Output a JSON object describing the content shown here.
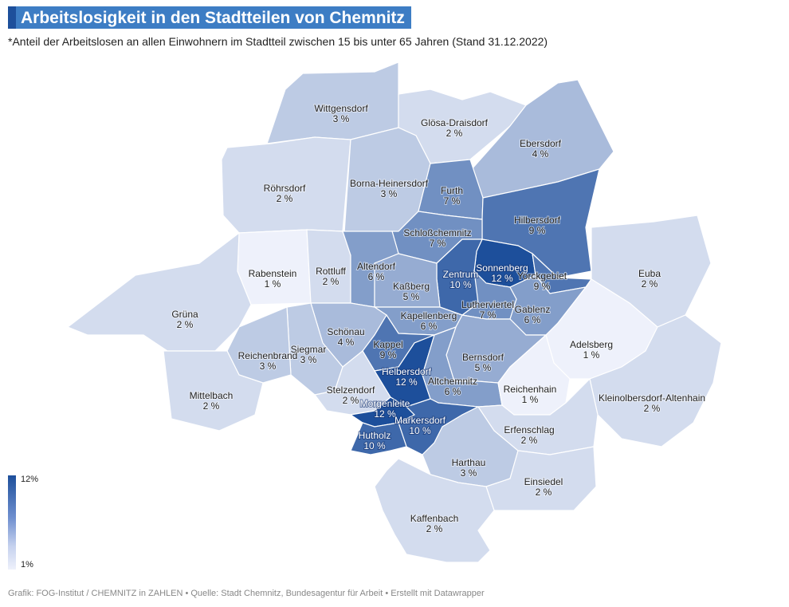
{
  "title": "Arbeitslosigkeit in den Stadtteilen von Chemnitz",
  "subtitle": "*Anteil der Arbeitslosen an allen Einwohnern im Stadtteil zwischen 15 bis unter 65 Jahren (Stand 31.12.2022)",
  "legend": {
    "max_label": "12%",
    "min_label": "1%",
    "color_max": "#1d4f9b",
    "color_min": "#eef1fb"
  },
  "footer": "Grafik: FOG-Institut / CHEMNITZ in ZAHLEN • Quelle: Stadt Chemnitz, Bundesagentur für Arbeit • Erstellt mit Datawrapper",
  "districts": [
    {
      "name": "Wittgensdorf",
      "value_label": "3 %",
      "value": 3
    },
    {
      "name": "Glösa-Draisdorf",
      "value_label": "2 %",
      "value": 2
    },
    {
      "name": "Ebersdorf",
      "value_label": "4 %",
      "value": 4
    },
    {
      "name": "Röhrsdorf",
      "value_label": "2 %",
      "value": 2
    },
    {
      "name": "Borna-Heinersdorf",
      "value_label": "3 %",
      "value": 3
    },
    {
      "name": "Furth",
      "value_label": "7 %",
      "value": 7
    },
    {
      "name": "Hilbersdorf",
      "value_label": "9 %",
      "value": 9
    },
    {
      "name": "Schloßchemnitz",
      "value_label": "7 %",
      "value": 7
    },
    {
      "name": "Rabenstein",
      "value_label": "1 %",
      "value": 1
    },
    {
      "name": "Rottluff",
      "value_label": "2 %",
      "value": 2
    },
    {
      "name": "Altendorf",
      "value_label": "6 %",
      "value": 6
    },
    {
      "name": "Sonnenberg",
      "value_label": "12 %",
      "value": 12
    },
    {
      "name": "Euba",
      "value_label": "2 %",
      "value": 2
    },
    {
      "name": "Zentrum",
      "value_label": "10 %",
      "value": 10
    },
    {
      "name": "Yorckgebiet",
      "value_label": "9 %",
      "value": 9
    },
    {
      "name": "Kaßberg",
      "value_label": "5 %",
      "value": 5
    },
    {
      "name": "Lutherviertel",
      "value_label": "7 %",
      "value": 7
    },
    {
      "name": "Gablenz",
      "value_label": "6 %",
      "value": 6
    },
    {
      "name": "Grüna",
      "value_label": "2 %",
      "value": 2
    },
    {
      "name": "Kapellenberg",
      "value_label": "6 %",
      "value": 6
    },
    {
      "name": "Schönau",
      "value_label": "4 %",
      "value": 4
    },
    {
      "name": "Adelsberg",
      "value_label": "1 %",
      "value": 1
    },
    {
      "name": "Kappel",
      "value_label": "9 %",
      "value": 9
    },
    {
      "name": "Siegmar",
      "value_label": "3 %",
      "value": 3
    },
    {
      "name": "Reichenbrand",
      "value_label": "3 %",
      "value": 3
    },
    {
      "name": "Bernsdorf",
      "value_label": "5 %",
      "value": 5
    },
    {
      "name": "Helbersdorf",
      "value_label": "12 %",
      "value": 12
    },
    {
      "name": "Altchemnitz",
      "value_label": "6 %",
      "value": 6
    },
    {
      "name": "Reichenhain",
      "value_label": "1 %",
      "value": 1
    },
    {
      "name": "Mittelbach",
      "value_label": "2 %",
      "value": 2
    },
    {
      "name": "Stelzendorf",
      "value_label": "2 %",
      "value": 2
    },
    {
      "name": "Morgenleite",
      "value_label": "12 %",
      "value": 12
    },
    {
      "name": "Kleinolbersdorf-Altenhain",
      "value_label": "2 %",
      "value": 2
    },
    {
      "name": "Markersdorf",
      "value_label": "10 %",
      "value": 10
    },
    {
      "name": "Erfenschlag",
      "value_label": "2 %",
      "value": 2
    },
    {
      "name": "Hutholz",
      "value_label": "10 %",
      "value": 10
    },
    {
      "name": "Harthau",
      "value_label": "3 %",
      "value": 3
    },
    {
      "name": "Einsiedel",
      "value_label": "2 %",
      "value": 2
    },
    {
      "name": "Kaffenbach",
      "value_label": "2 %",
      "value": 2
    }
  ]
}
